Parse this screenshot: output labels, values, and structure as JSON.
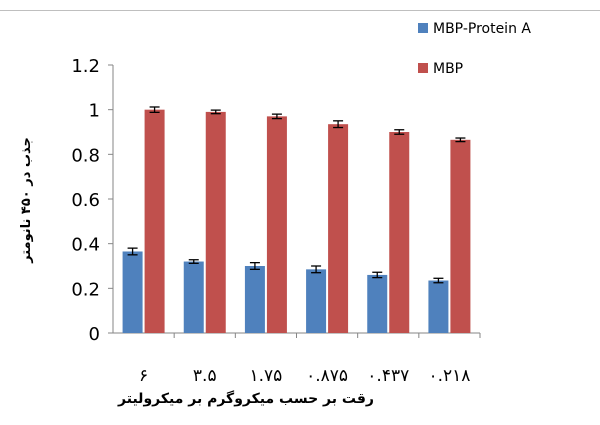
{
  "chart_data": {
    "type": "bar",
    "categories": [
      "۶",
      "۳.۵",
      "۱.۷۵",
      "۰.۸۷۵",
      "۰.۴۳۷",
      "۰.۲۱۸"
    ],
    "series": [
      {
        "name": "MBP-Protein A",
        "values": [
          0.365,
          0.32,
          0.3,
          0.285,
          0.26,
          0.235
        ],
        "errors": [
          0.015,
          0.008,
          0.015,
          0.015,
          0.012,
          0.01
        ],
        "color": "#4F81BD"
      },
      {
        "name": "MBP",
        "values": [
          1.0,
          0.99,
          0.97,
          0.935,
          0.9,
          0.865
        ],
        "errors": [
          0.012,
          0.008,
          0.01,
          0.015,
          0.01,
          0.008
        ],
        "color": "#C0504D"
      }
    ],
    "xlabel": "رقت بر حسب میکروگرم بر میکرولیتر",
    "ylabel": "جذب در ۴۵۰ نانومتر",
    "ylim": [
      0,
      1.2
    ],
    "yticks": [
      "0",
      "0.2",
      "0.4",
      "0.6",
      "0.8",
      "1",
      "1.2"
    ],
    "grid": false,
    "legend": "top-right"
  }
}
